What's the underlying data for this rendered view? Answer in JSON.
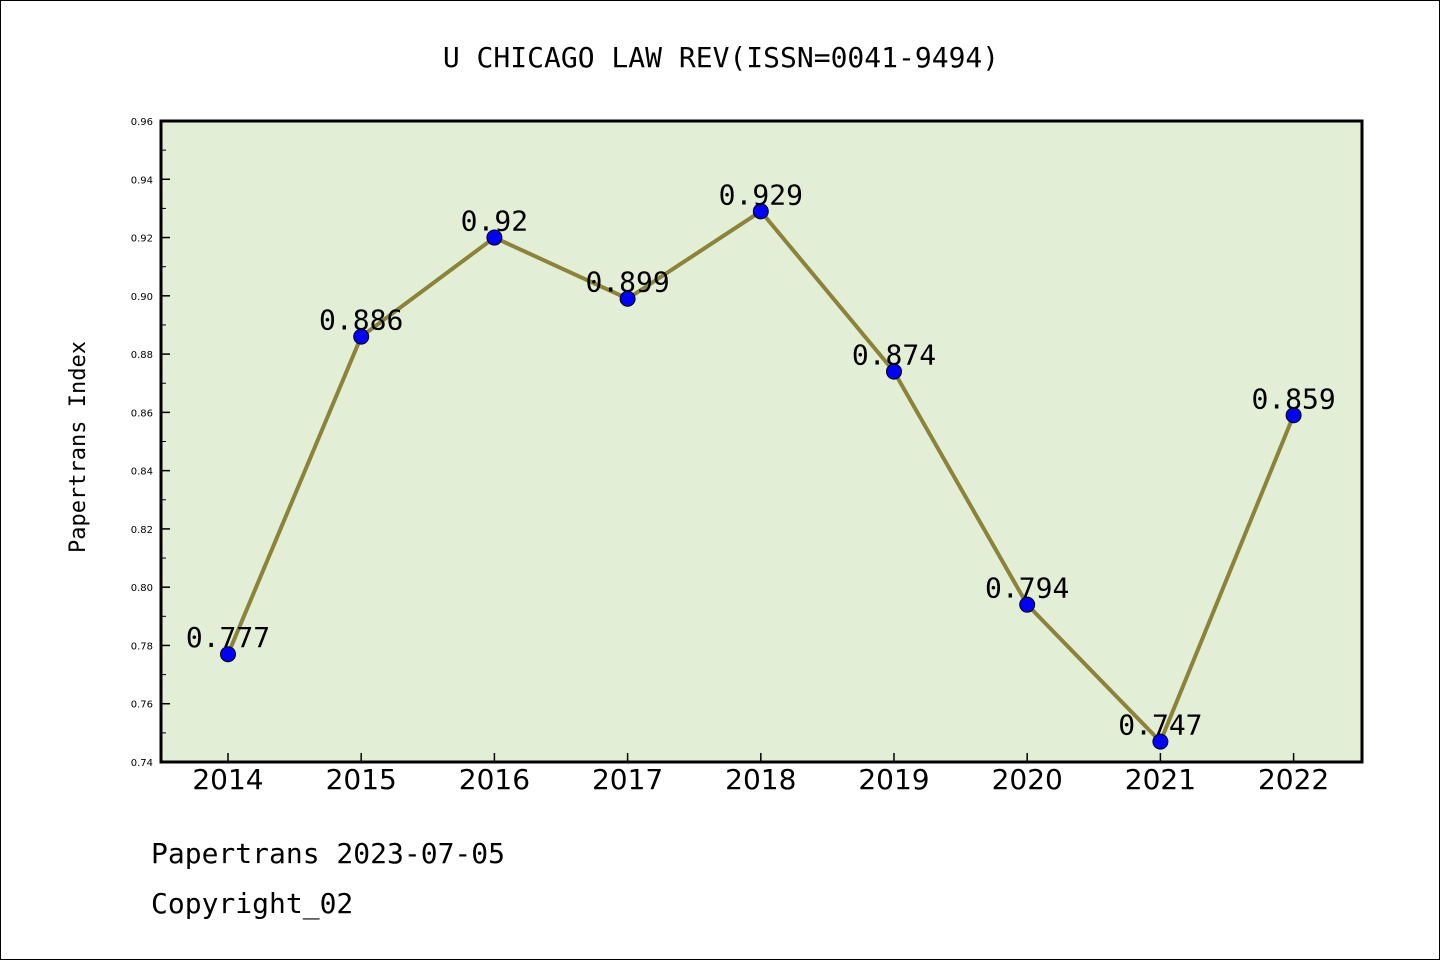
{
  "chart_data": {
    "type": "line",
    "title": "U CHICAGO LAW REV(ISSN=0041-9494)",
    "xlabel": "",
    "ylabel": "Papertrans Index",
    "categories": [
      "2014",
      "2015",
      "2016",
      "2017",
      "2018",
      "2019",
      "2020",
      "2021",
      "2022"
    ],
    "series": [
      {
        "values": [
          0.777,
          0.886,
          0.92,
          0.899,
          0.929,
          0.874,
          0.794,
          0.747,
          0.859
        ],
        "data_labels": [
          "0.777",
          "0.886",
          "0.92",
          "0.899",
          "0.929",
          "0.874",
          "0.794",
          "0.747",
          "0.859"
        ],
        "line_color": "#8b8438",
        "marker_color": "#0000ff"
      }
    ],
    "ylim": [
      0.74,
      0.96
    ],
    "yticks": [
      "0.74",
      "0.76",
      "0.78",
      "0.80",
      "0.82",
      "0.84",
      "0.86",
      "0.88",
      "0.90",
      "0.92",
      "0.94",
      "0.96"
    ],
    "plot_background": "#e2efd6",
    "grid": false,
    "legend": "none"
  },
  "footer": {
    "date_line": "Papertrans 2023-07-05",
    "copyright_line": "Copyright_02"
  }
}
